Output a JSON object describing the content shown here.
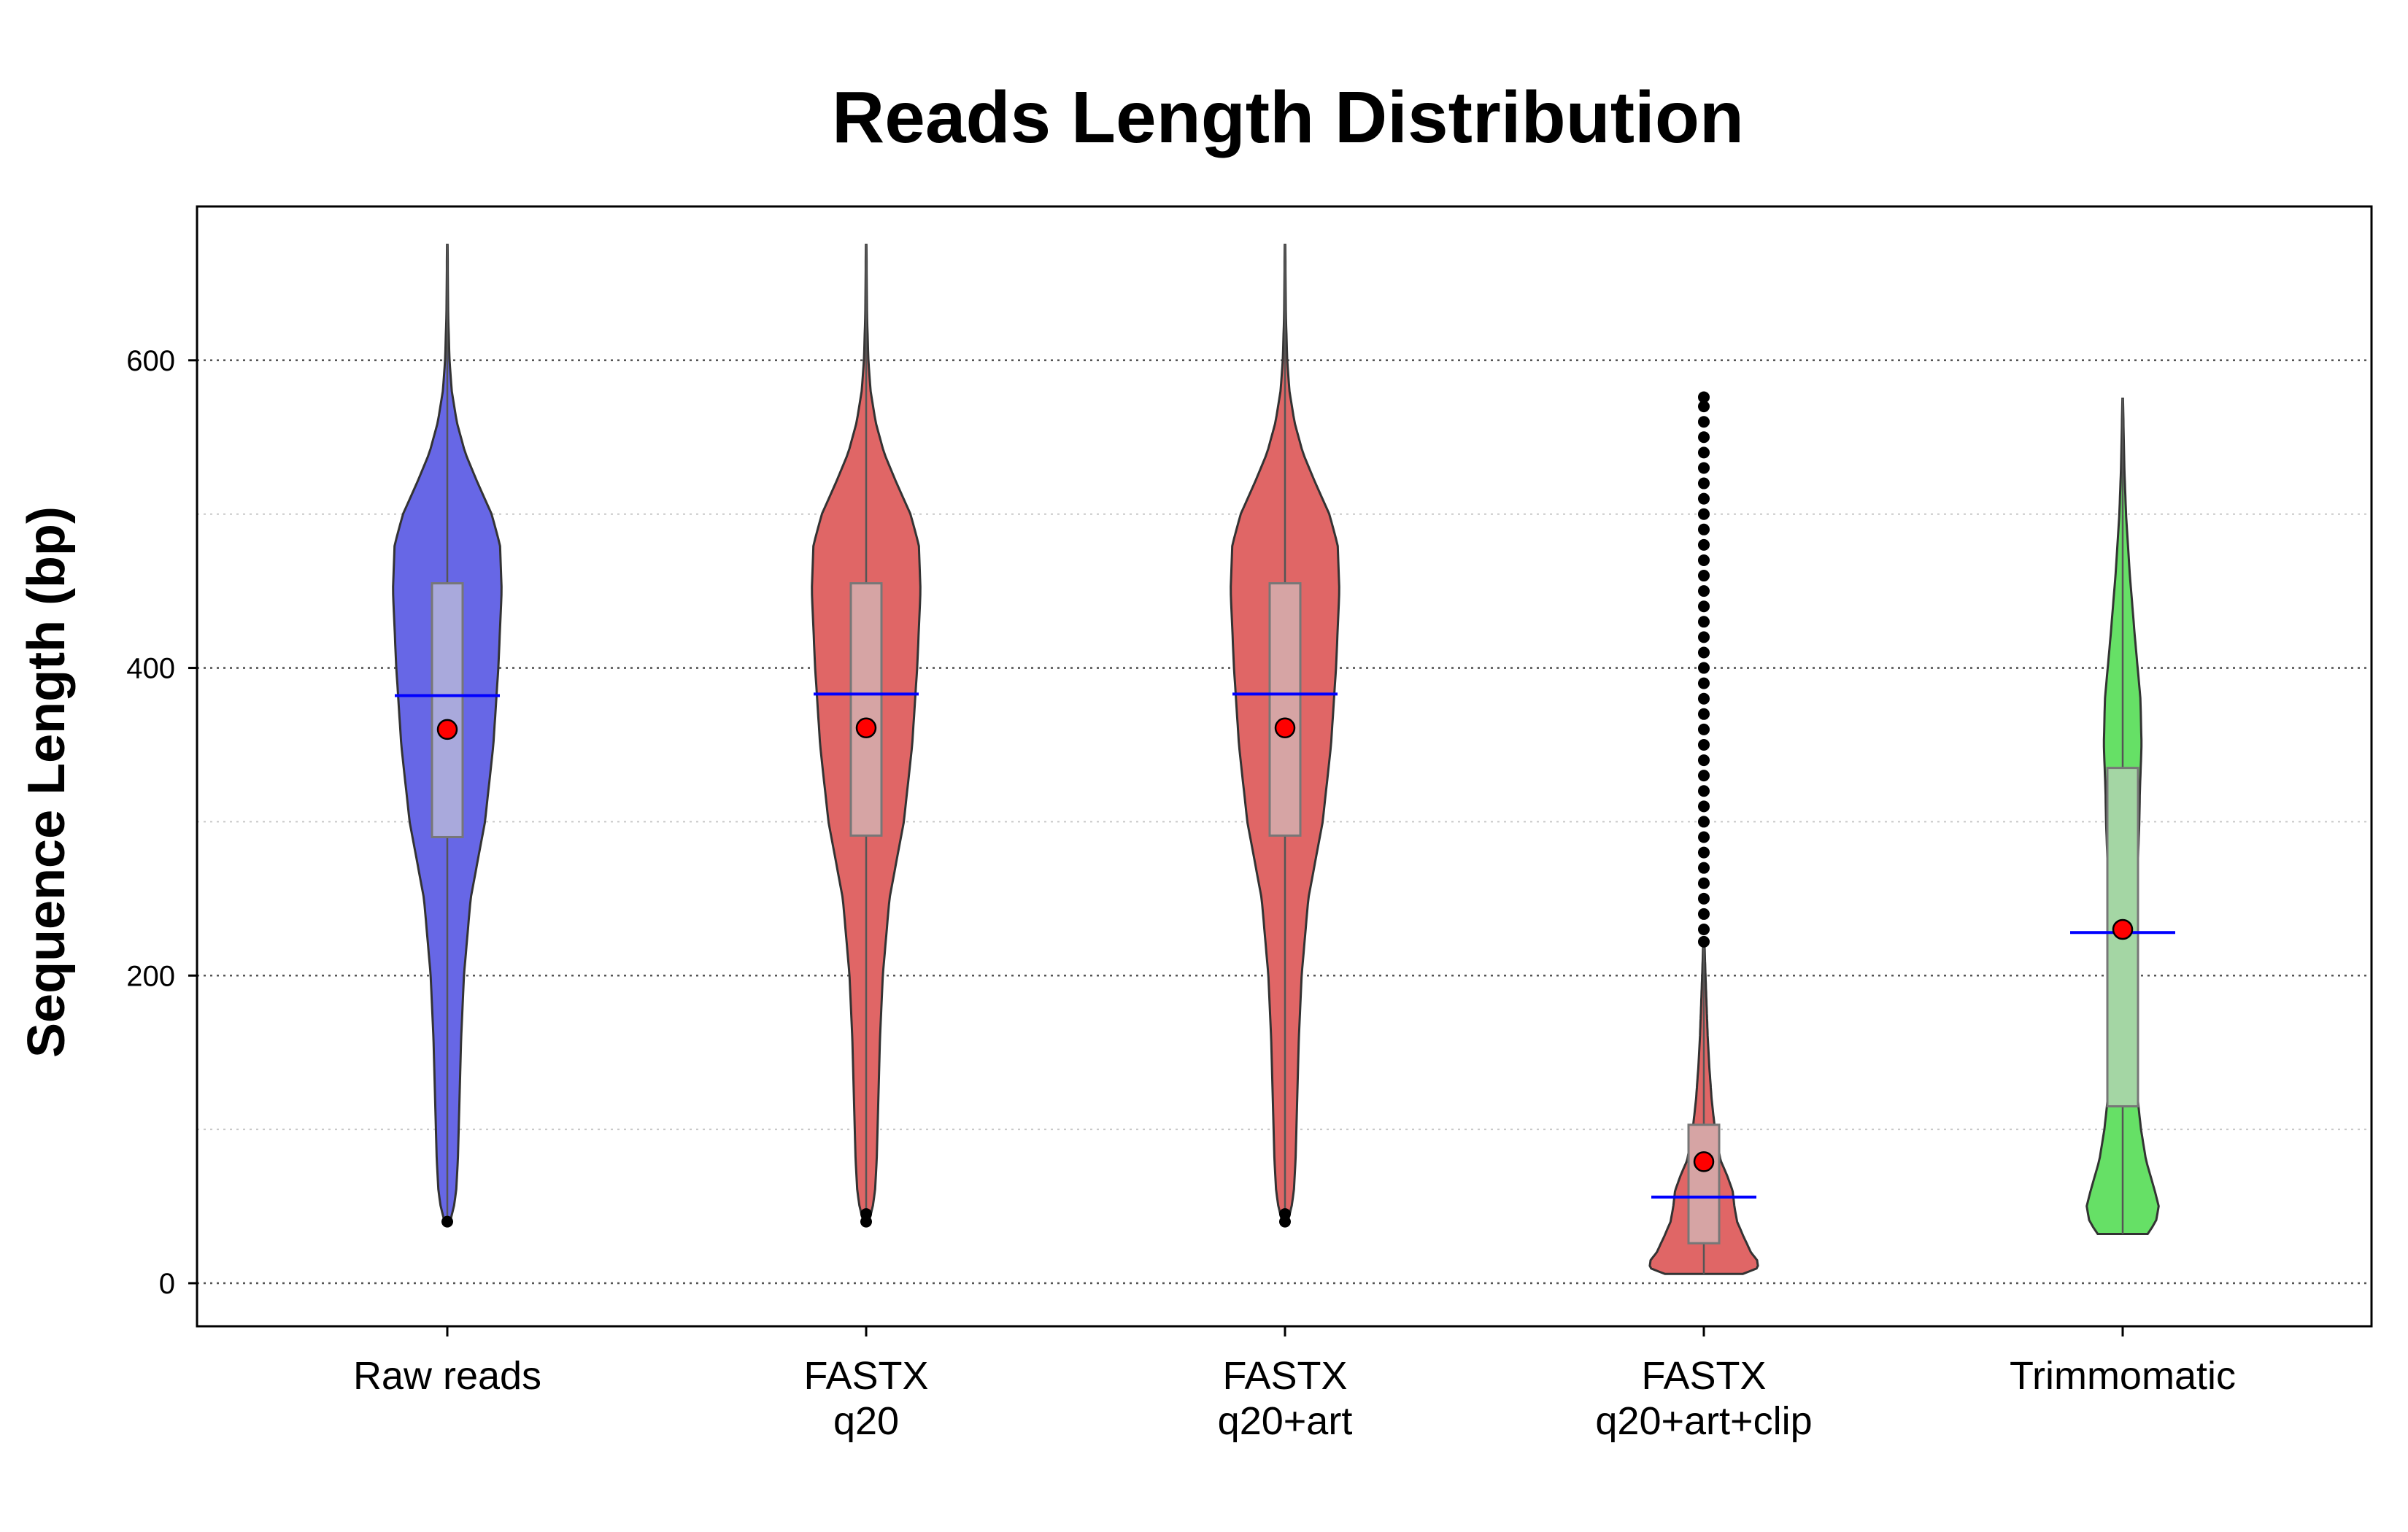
{
  "chart_data": {
    "type": "violin",
    "title": "Reads Length Distribution",
    "ylabel": "Sequence Length (bp)",
    "xlabel": "",
    "ylim": [
      -28,
      700
    ],
    "yticks": [
      0,
      200,
      400,
      600
    ],
    "grid": true,
    "categories": [
      {
        "lines": [
          "Raw reads"
        ]
      },
      {
        "lines": [
          "FASTX",
          "q20"
        ]
      },
      {
        "lines": [
          "FASTX",
          "q20+art"
        ]
      },
      {
        "lines": [
          "FASTX",
          "q20+art+clip"
        ]
      },
      {
        "lines": [
          "Trimmomatic"
        ]
      }
    ],
    "colors": {
      "violin_fills": [
        "#6767e6",
        "#e06666",
        "#e06666",
        "#e06666",
        "#66e066"
      ],
      "box_fills": [
        "#a9a9dc",
        "#d6a4a4",
        "#d6a4a4",
        "#d6a4a4",
        "#a4d6a4"
      ],
      "median_line": "#0000ff",
      "mean_point": "#ff0000",
      "outlier": "#000000"
    },
    "series": [
      {
        "min": 40,
        "max": 675,
        "q1": 290,
        "median": 382,
        "q3": 455,
        "mean": 360,
        "density": [
          [
            40,
            0.05
          ],
          [
            50,
            0.12
          ],
          [
            60,
            0.16
          ],
          [
            80,
            0.19
          ],
          [
            120,
            0.22
          ],
          [
            160,
            0.25
          ],
          [
            200,
            0.3
          ],
          [
            250,
            0.42
          ],
          [
            300,
            0.68
          ],
          [
            350,
            0.83
          ],
          [
            400,
            0.92
          ],
          [
            450,
            0.98
          ],
          [
            480,
            0.95
          ],
          [
            500,
            0.8
          ],
          [
            520,
            0.55
          ],
          [
            540,
            0.32
          ],
          [
            560,
            0.17
          ],
          [
            580,
            0.08
          ],
          [
            600,
            0.04
          ],
          [
            630,
            0.015
          ],
          [
            675,
            0.005
          ]
        ],
        "outliers": [
          40
        ]
      },
      {
        "min": 40,
        "max": 675,
        "q1": 291,
        "median": 383,
        "q3": 455,
        "mean": 361,
        "density": [
          [
            40,
            0.05
          ],
          [
            50,
            0.12
          ],
          [
            60,
            0.16
          ],
          [
            80,
            0.19
          ],
          [
            120,
            0.22
          ],
          [
            160,
            0.25
          ],
          [
            200,
            0.3
          ],
          [
            250,
            0.42
          ],
          [
            300,
            0.68
          ],
          [
            350,
            0.83
          ],
          [
            400,
            0.92
          ],
          [
            450,
            0.98
          ],
          [
            480,
            0.95
          ],
          [
            500,
            0.8
          ],
          [
            520,
            0.55
          ],
          [
            540,
            0.32
          ],
          [
            560,
            0.17
          ],
          [
            580,
            0.08
          ],
          [
            600,
            0.04
          ],
          [
            630,
            0.015
          ],
          [
            675,
            0.005
          ]
        ],
        "outliers": [
          40,
          45
        ]
      },
      {
        "min": 40,
        "max": 675,
        "q1": 291,
        "median": 383,
        "q3": 455,
        "mean": 361,
        "density": [
          [
            40,
            0.05
          ],
          [
            50,
            0.12
          ],
          [
            60,
            0.16
          ],
          [
            80,
            0.19
          ],
          [
            120,
            0.22
          ],
          [
            160,
            0.25
          ],
          [
            200,
            0.3
          ],
          [
            250,
            0.42
          ],
          [
            300,
            0.68
          ],
          [
            350,
            0.83
          ],
          [
            400,
            0.92
          ],
          [
            450,
            0.98
          ],
          [
            480,
            0.95
          ],
          [
            500,
            0.8
          ],
          [
            520,
            0.55
          ],
          [
            540,
            0.32
          ],
          [
            560,
            0.17
          ],
          [
            580,
            0.08
          ],
          [
            600,
            0.04
          ],
          [
            630,
            0.015
          ],
          [
            675,
            0.005
          ]
        ],
        "outliers": [
          40,
          45
        ]
      },
      {
        "min": 6,
        "max": 220,
        "q1": 26,
        "median": 56,
        "q3": 103,
        "mean": 79,
        "density": [
          [
            6,
            0.7
          ],
          [
            10,
            0.98
          ],
          [
            15,
            0.96
          ],
          [
            20,
            0.85
          ],
          [
            30,
            0.72
          ],
          [
            40,
            0.6
          ],
          [
            50,
            0.55
          ],
          [
            60,
            0.52
          ],
          [
            70,
            0.42
          ],
          [
            80,
            0.3
          ],
          [
            100,
            0.2
          ],
          [
            120,
            0.14
          ],
          [
            140,
            0.1
          ],
          [
            160,
            0.07
          ],
          [
            180,
            0.05
          ],
          [
            200,
            0.03
          ],
          [
            220,
            0.012
          ]
        ],
        "outliers": [
          222,
          230,
          240,
          250,
          260,
          270,
          280,
          290,
          300,
          310,
          320,
          330,
          340,
          350,
          360,
          370,
          380,
          390,
          400,
          410,
          420,
          430,
          440,
          450,
          460,
          470,
          480,
          490,
          500,
          510,
          520,
          530,
          540,
          550,
          560,
          570,
          576
        ]
      },
      {
        "min": 32,
        "max": 575,
        "q1": 115,
        "median": 228,
        "q3": 335,
        "mean": 230,
        "density": [
          [
            32,
            0.45
          ],
          [
            40,
            0.6
          ],
          [
            50,
            0.65
          ],
          [
            60,
            0.58
          ],
          [
            80,
            0.42
          ],
          [
            100,
            0.33
          ],
          [
            120,
            0.27
          ],
          [
            150,
            0.23
          ],
          [
            200,
            0.22
          ],
          [
            250,
            0.25
          ],
          [
            300,
            0.3
          ],
          [
            320,
            0.31
          ],
          [
            350,
            0.34
          ],
          [
            380,
            0.32
          ],
          [
            420,
            0.22
          ],
          [
            460,
            0.13
          ],
          [
            500,
            0.06
          ],
          [
            530,
            0.03
          ],
          [
            575,
            0.005
          ]
        ],
        "outliers": []
      }
    ]
  }
}
